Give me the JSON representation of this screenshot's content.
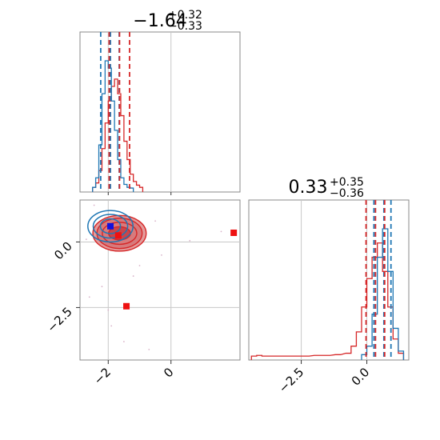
{
  "chart_data": {
    "type": "corner",
    "params": [
      {
        "title": {
          "median": "−1.64",
          "upper": "+0.32",
          "lower": "−0.33"
        },
        "range": [
          -2.9,
          2.2
        ],
        "ticks": [
          -2,
          0
        ],
        "tick_labels": [
          "−2",
          "0"
        ],
        "quantiles_red": [
          -1.97,
          -1.64,
          -1.32
        ],
        "quantiles_blue": [
          -2.24,
          -1.93,
          -1.65
        ],
        "hist_red": {
          "x": [
            -2.45,
            -2.35,
            -2.25,
            -2.15,
            -2.05,
            -1.95,
            -1.85,
            -1.75,
            -1.65,
            -1.55,
            -1.45,
            -1.35,
            -1.25,
            -1.15,
            -1.05,
            -0.95
          ],
          "y": [
            2,
            8,
            25,
            55,
            90,
            120,
            140,
            150,
            130,
            100,
            65,
            40,
            20,
            10,
            5,
            2
          ]
        },
        "hist_blue": {
          "x": [
            -2.45,
            -2.35,
            -2.25,
            -2.15,
            -2.05,
            -1.95,
            -1.85,
            -1.75,
            -1.65,
            -1.55,
            -1.45,
            -1.35,
            -1.25
          ],
          "y": [
            2,
            15,
            60,
            130,
            175,
            165,
            120,
            80,
            40,
            15,
            6,
            2,
            1
          ]
        }
      },
      {
        "title": {
          "median": "0.33",
          "upper": "+0.35",
          "lower": "−0.36"
        },
        "range": [
          -4.5,
          1.6
        ],
        "ticks": [
          -2.5,
          0.0
        ],
        "tick_labels": [
          "−2.5",
          "0.0"
        ],
        "quantiles_red": [
          -0.03,
          0.33,
          0.68
        ],
        "quantiles_blue": [
          0.27,
          0.65,
          0.92
        ],
        "hist_red": {
          "x": [
            -4.3,
            -4.1,
            -3.9,
            -3.5,
            -3.1,
            -2.7,
            -2.3,
            -1.9,
            -1.5,
            -1.1,
            -0.7,
            -0.5,
            -0.3,
            -0.1,
            0.1,
            0.3,
            0.5,
            0.7,
            0.9,
            1.1,
            1.3
          ],
          "y": [
            1,
            2,
            1,
            1,
            1,
            1,
            1,
            2,
            2,
            3,
            5,
            15,
            35,
            70,
            110,
            140,
            160,
            120,
            70,
            25,
            5
          ]
        },
        "hist_blue": {
          "x": [
            -0.1,
            0.1,
            0.3,
            0.5,
            0.7,
            0.9,
            1.1,
            1.3
          ],
          "y": [
            3,
            15,
            60,
            140,
            180,
            120,
            40,
            8
          ]
        }
      }
    ],
    "scatter_2d": {
      "x_range": [
        -2.9,
        2.2
      ],
      "y_range": [
        -4.5,
        1.6
      ],
      "red_centre": [
        -1.64,
        0.33
      ],
      "blue_centre": [
        -1.93,
        0.6
      ],
      "red_contour_radii": [
        [
          0.35,
          0.25
        ],
        [
          0.55,
          0.42
        ],
        [
          0.72,
          0.58
        ],
        [
          0.85,
          0.68
        ]
      ],
      "blue_contour_radii": [
        [
          0.32,
          0.28
        ],
        [
          0.55,
          0.45
        ],
        [
          0.72,
          0.6
        ]
      ],
      "red_markers": [
        [
          -1.68,
          0.25
        ],
        [
          -1.42,
          -2.45
        ],
        [
          2.0,
          0.35
        ]
      ],
      "blue_markers": [
        [
          -1.93,
          0.6
        ]
      ],
      "outliers": [
        [
          -2.6,
          -2.1
        ],
        [
          -1.2,
          -1.3
        ],
        [
          -0.5,
          0.8
        ],
        [
          1.6,
          0.4
        ],
        [
          -2.2,
          -1.7
        ],
        [
          -1.9,
          -3.2
        ],
        [
          -0.7,
          -4.1
        ],
        [
          -2.7,
          0.1
        ],
        [
          -1.5,
          -3.8
        ],
        [
          -2.45,
          1.4
        ],
        [
          -0.3,
          -0.5
        ],
        [
          0.6,
          0.05
        ],
        [
          -1.0,
          -0.9
        ],
        [
          -2.0,
          -2.6
        ]
      ]
    },
    "colors": {
      "red": "#d62728",
      "red_fill": "#e39b9b",
      "blue": "#1f77b4",
      "grid": "#c8c8c8",
      "frame": "#888888"
    },
    "grid": true
  }
}
